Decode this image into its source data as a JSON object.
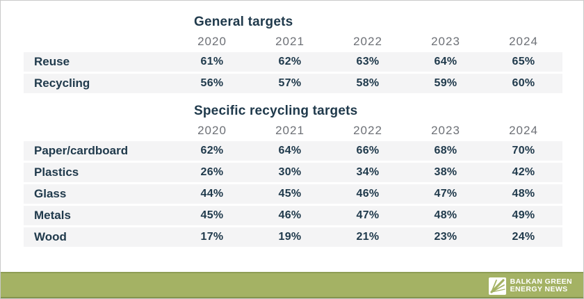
{
  "colors": {
    "heading_text": "#203a4c",
    "value_text": "#203a4c",
    "year_header_text": "#6d7076",
    "row_stripe": "#f4f4f5",
    "footer_green": "#a4b264",
    "footer_edge_dark": "#8d9d55",
    "logo_text": "#ffffff",
    "page_border": "#c9c9c9"
  },
  "chart_data": [
    {
      "type": "table",
      "title": "General targets",
      "columns": [
        "2020",
        "2021",
        "2022",
        "2023",
        "2024"
      ],
      "rows": [
        {
          "label": "Reuse",
          "values": [
            "61%",
            "62%",
            "63%",
            "64%",
            "65%"
          ]
        },
        {
          "label": "Recycling",
          "values": [
            "56%",
            "57%",
            "58%",
            "59%",
            "60%"
          ]
        }
      ]
    },
    {
      "type": "table",
      "title": "Specific recycling targets",
      "columns": [
        "2020",
        "2021",
        "2022",
        "2023",
        "2024"
      ],
      "rows": [
        {
          "label": "Paper/cardboard",
          "values": [
            "62%",
            "64%",
            "66%",
            "68%",
            "70%"
          ]
        },
        {
          "label": "Plastics",
          "values": [
            "26%",
            "30%",
            "34%",
            "38%",
            "42%"
          ]
        },
        {
          "label": "Glass",
          "values": [
            "44%",
            "45%",
            "46%",
            "47%",
            "48%"
          ]
        },
        {
          "label": "Metals",
          "values": [
            "45%",
            "46%",
            "47%",
            "48%",
            "49%"
          ]
        },
        {
          "label": "Wood",
          "values": [
            "17%",
            "19%",
            "21%",
            "23%",
            "24%"
          ]
        }
      ]
    }
  ],
  "footer": {
    "logo_line1": "BALKAN GREEN",
    "logo_line2": "ENERGY NEWS"
  }
}
